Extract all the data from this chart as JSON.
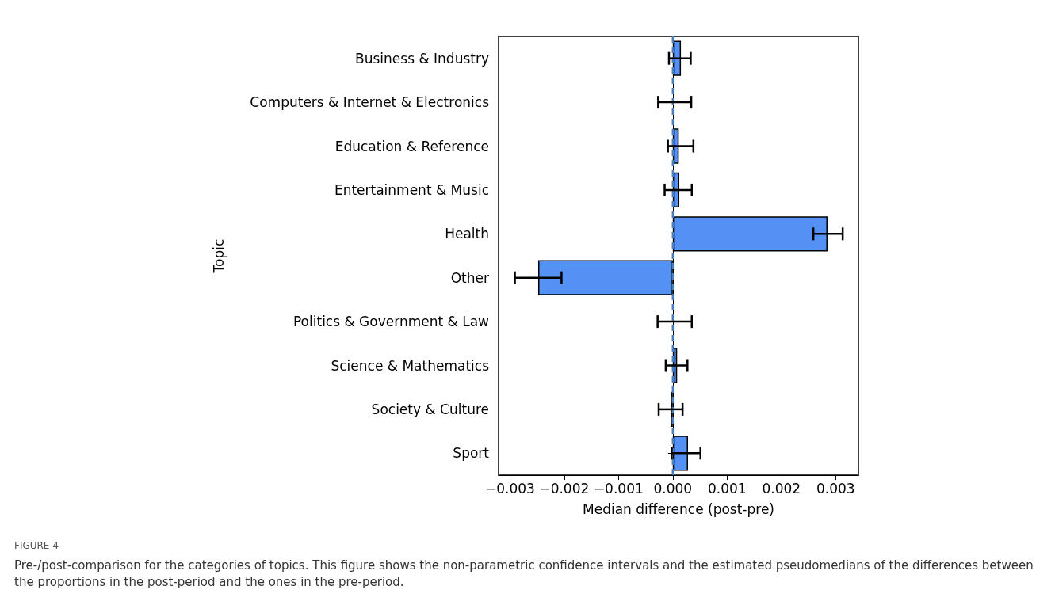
{
  "chart_data": {
    "type": "bar",
    "orientation": "horizontal",
    "xlabel": "Median difference (post-pre)",
    "ylabel": "Topic",
    "categories": [
      "Business & Industry",
      "Computers & Internet & Electronics",
      "Education & Reference",
      "Entertainment & Music",
      "Health",
      "Other",
      "Politics & Government & Law",
      "Science & Mathematics",
      "Society & Culture",
      "Sport"
    ],
    "values": [
      0.00015,
      0,
      0.00011,
      0.00012,
      0.00285,
      -0.00248,
      0,
      8e-05,
      -4e-05,
      0.00028
    ],
    "errors": [
      [
        -7e-05,
        0.00033
      ],
      [
        -0.00027,
        0.00034
      ],
      [
        -9e-05,
        0.00038
      ],
      [
        -0.00015,
        0.00035
      ],
      [
        0.00259,
        0.00313
      ],
      [
        -0.00291,
        -0.00205
      ],
      [
        -0.00028,
        0.00035
      ],
      [
        -0.00013,
        0.00027
      ],
      [
        -0.00026,
        0.00018
      ],
      [
        -2e-05,
        0.00051
      ]
    ],
    "color": "#5590f5",
    "xlim": [
      -0.00321,
      0.00342
    ],
    "xticks": [
      {
        "value": -0.003,
        "label": "−0.003"
      },
      {
        "value": -0.002,
        "label": "−0.002"
      },
      {
        "value": -0.001,
        "label": "−0.001"
      },
      {
        "value": 0,
        "label": "0.000"
      },
      {
        "value": 0.001,
        "label": "0.001"
      },
      {
        "value": 0.002,
        "label": "0.002"
      },
      {
        "value": 0.003,
        "label": "0.003"
      }
    ],
    "ref_lines": [
      {
        "axis": "x",
        "value": 0,
        "color": "#4a7fc1",
        "line_style": "dashed"
      }
    ],
    "grid": false,
    "annotations": [
      "FIGURE 4",
      "Pre-/post-comparison for the categories of topics. This figure shows the non-parametric confidence intervals and the estimated pseudomedians of the differences between the proportions in the post-period and the ones in the pre-period."
    ]
  }
}
